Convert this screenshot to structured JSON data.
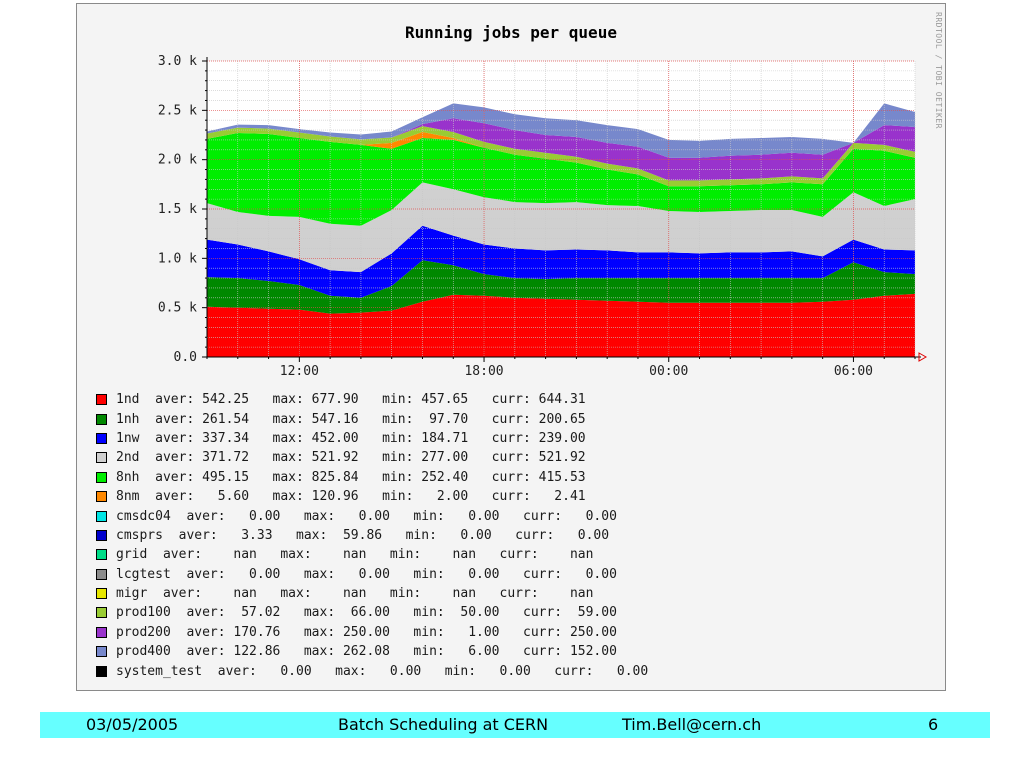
{
  "chart_data": {
    "type": "area",
    "stacked": true,
    "title": "Running jobs per queue",
    "xlabel": "",
    "ylabel": "",
    "y_tick_labels": [
      "0.0",
      "0.5 k",
      "1.0 k",
      "1.5 k",
      "2.0 k",
      "2.5 k",
      "3.0 k"
    ],
    "y_tick_values": [
      0,
      500,
      1000,
      1500,
      2000,
      2500,
      3000
    ],
    "ylim": [
      0,
      3000
    ],
    "x_range_hours": [
      9.0,
      32.0
    ],
    "x_tick_labels": [
      "12:00",
      "18:00",
      "00:00",
      "06:00"
    ],
    "x_tick_hours": [
      12,
      18,
      24,
      30
    ],
    "grid": true,
    "legend_placement": "bottom",
    "x_hours": [
      9.0,
      10.0,
      11.0,
      12.0,
      13.0,
      14.0,
      15.0,
      16.0,
      17.0,
      18.0,
      19.0,
      20.0,
      21.0,
      22.0,
      23.0,
      24.0,
      25.0,
      26.0,
      27.0,
      28.0,
      29.0,
      30.0,
      31.0,
      32.0
    ],
    "series": [
      {
        "name": "1nd",
        "color": "#ff0000",
        "values": [
          510,
          500,
          490,
          480,
          440,
          450,
          470,
          560,
          630,
          620,
          600,
          590,
          580,
          570,
          560,
          550,
          550,
          550,
          550,
          550,
          560,
          580,
          620,
          640
        ]
      },
      {
        "name": "1nh",
        "color": "#008800",
        "values": [
          300,
          300,
          280,
          250,
          180,
          150,
          250,
          420,
          300,
          220,
          200,
          200,
          220,
          230,
          240,
          250,
          250,
          250,
          250,
          250,
          240,
          380,
          240,
          200
        ]
      },
      {
        "name": "1nw",
        "color": "#0000ff",
        "values": [
          380,
          340,
          300,
          260,
          260,
          260,
          330,
          350,
          300,
          300,
          300,
          290,
          290,
          280,
          260,
          260,
          250,
          260,
          260,
          270,
          220,
          230,
          230,
          240
        ]
      },
      {
        "name": "2nd",
        "color": "#d0d0d0",
        "values": [
          370,
          330,
          360,
          430,
          470,
          470,
          440,
          440,
          470,
          480,
          470,
          480,
          480,
          460,
          470,
          420,
          420,
          420,
          430,
          420,
          400,
          480,
          440,
          520
        ]
      },
      {
        "name": "8nh",
        "color": "#00ee00",
        "values": [
          650,
          800,
          830,
          800,
          830,
          820,
          620,
          450,
          500,
          500,
          480,
          450,
          400,
          360,
          320,
          250,
          260,
          260,
          260,
          280,
          330,
          440,
          560,
          420
        ]
      },
      {
        "name": "8nm",
        "color": "#ff8800",
        "values": [
          0,
          0,
          0,
          0,
          0,
          0,
          60,
          60,
          20,
          0,
          0,
          0,
          0,
          0,
          0,
          0,
          0,
          0,
          0,
          0,
          0,
          0,
          0,
          2
        ]
      },
      {
        "name": "cmsdc04",
        "color": "#00e5e5",
        "values": [
          0,
          0,
          0,
          0,
          0,
          0,
          0,
          0,
          0,
          0,
          0,
          0,
          0,
          0,
          0,
          0,
          0,
          0,
          0,
          0,
          0,
          0,
          0,
          0
        ]
      },
      {
        "name": "cmsprs",
        "color": "#0000cc",
        "values": [
          0,
          0,
          0,
          0,
          0,
          0,
          0,
          0,
          0,
          0,
          0,
          0,
          0,
          0,
          0,
          0,
          0,
          0,
          0,
          0,
          0,
          0,
          0,
          0
        ]
      },
      {
        "name": "grid",
        "color": "#00dd88",
        "values": [
          0,
          0,
          0,
          0,
          0,
          0,
          0,
          0,
          0,
          0,
          0,
          0,
          0,
          0,
          0,
          0,
          0,
          0,
          0,
          0,
          0,
          0,
          0,
          0
        ]
      },
      {
        "name": "lcgtest",
        "color": "#8c8c8c",
        "values": [
          0,
          0,
          0,
          0,
          0,
          0,
          0,
          0,
          0,
          0,
          0,
          0,
          0,
          0,
          0,
          0,
          0,
          0,
          0,
          0,
          0,
          0,
          0,
          0
        ]
      },
      {
        "name": "migr",
        "color": "#e6e600",
        "values": [
          0,
          0,
          0,
          0,
          0,
          0,
          0,
          0,
          0,
          0,
          0,
          0,
          0,
          0,
          0,
          0,
          0,
          0,
          0,
          0,
          0,
          0,
          0,
          0
        ]
      },
      {
        "name": "prod100",
        "color": "#99cc33",
        "values": [
          55,
          55,
          55,
          55,
          55,
          55,
          55,
          60,
          60,
          60,
          60,
          60,
          60,
          60,
          60,
          60,
          60,
          60,
          60,
          60,
          60,
          60,
          60,
          59
        ]
      },
      {
        "name": "prod200",
        "color": "#9933cc",
        "values": [
          0,
          0,
          0,
          0,
          0,
          0,
          0,
          20,
          140,
          190,
          190,
          180,
          200,
          210,
          220,
          230,
          230,
          240,
          240,
          240,
          240,
          0,
          200,
          250
        ]
      },
      {
        "name": "prod400",
        "color": "#7788cc",
        "values": [
          20,
          30,
          35,
          35,
          40,
          50,
          60,
          70,
          150,
          160,
          160,
          170,
          170,
          180,
          180,
          180,
          170,
          170,
          170,
          160,
          160,
          0,
          220,
          152
        ]
      },
      {
        "name": "system_test",
        "color": "#000000",
        "values": [
          0,
          0,
          0,
          0,
          0,
          0,
          0,
          0,
          0,
          0,
          0,
          0,
          0,
          0,
          0,
          0,
          0,
          0,
          0,
          0,
          0,
          0,
          0,
          0
        ]
      }
    ]
  },
  "legend": [
    {
      "name": "1nd",
      "color": "#ff0000",
      "text": "1nd  aver: 542.25   max: 677.90   min: 457.65   curr: 644.31"
    },
    {
      "name": "1nh",
      "color": "#008800",
      "text": "1nh  aver: 261.54   max: 547.16   min:  97.70   curr: 200.65"
    },
    {
      "name": "1nw",
      "color": "#0000ff",
      "text": "1nw  aver: 337.34   max: 452.00   min: 184.71   curr: 239.00"
    },
    {
      "name": "2nd",
      "color": "#d0d0d0",
      "text": "2nd  aver: 371.72   max: 521.92   min: 277.00   curr: 521.92"
    },
    {
      "name": "8nh",
      "color": "#00ee00",
      "text": "8nh  aver: 495.15   max: 825.84   min: 252.40   curr: 415.53"
    },
    {
      "name": "8nm",
      "color": "#ff8800",
      "text": "8nm  aver:   5.60   max: 120.96   min:   2.00   curr:   2.41"
    },
    {
      "name": "cmsdc04",
      "color": "#00e5e5",
      "text": "cmsdc04  aver:   0.00   max:   0.00   min:   0.00   curr:   0.00"
    },
    {
      "name": "cmsprs",
      "color": "#0000cc",
      "text": "cmsprs  aver:   3.33   max:  59.86   min:   0.00   curr:   0.00"
    },
    {
      "name": "grid",
      "color": "#00dd88",
      "text": "grid  aver:    nan   max:    nan   min:    nan   curr:    nan"
    },
    {
      "name": "lcgtest",
      "color": "#8c8c8c",
      "text": "lcgtest  aver:   0.00   max:   0.00   min:   0.00   curr:   0.00"
    },
    {
      "name": "migr",
      "color": "#e6e600",
      "text": "migr  aver:    nan   max:    nan   min:    nan   curr:    nan"
    },
    {
      "name": "prod100",
      "color": "#99cc33",
      "text": "prod100  aver:  57.02   max:  66.00   min:  50.00   curr:  59.00"
    },
    {
      "name": "prod200",
      "color": "#9933cc",
      "text": "prod200  aver: 170.76   max: 250.00   min:   1.00   curr: 250.00"
    },
    {
      "name": "prod400",
      "color": "#7788cc",
      "text": "prod400  aver: 122.86   max: 262.08   min:   6.00   curr: 152.00"
    },
    {
      "name": "system_test",
      "color": "#000000",
      "text": "system_test  aver:   0.00   max:   0.00   min:   0.00   curr:   0.00"
    }
  ],
  "watermark": "RRDTOOL / TOBI OETIKER",
  "footer": {
    "date": "03/05/2005",
    "title": "Batch Scheduling at CERN",
    "email": "Tim.Bell@cern.ch",
    "page": "6"
  }
}
